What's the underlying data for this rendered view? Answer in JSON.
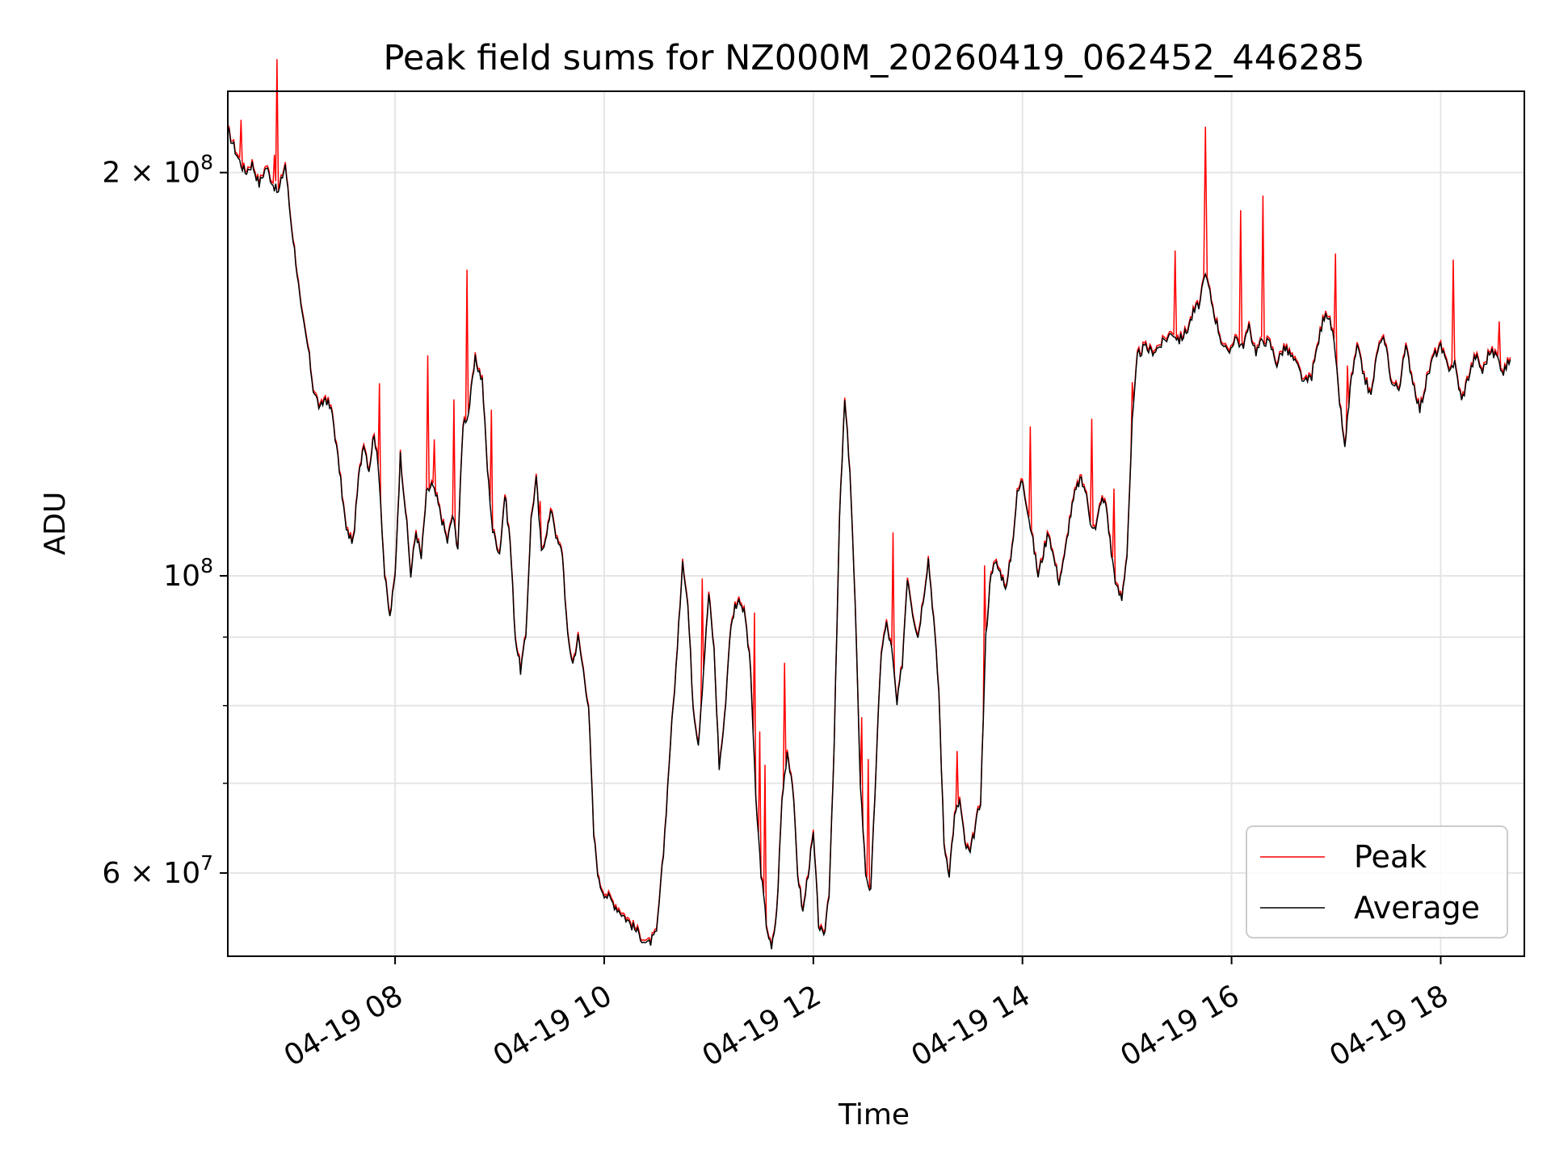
{
  "chart_data": {
    "type": "line",
    "title": "Peak field sums for NZ000M_20260419_062452_446285",
    "xlabel": "Time",
    "ylabel": "ADU",
    "x_axis": "datetime",
    "y_scale": "log",
    "xlim": [
      "04-19 06:24",
      "04-19 18:48"
    ],
    "ylim": [
      52000000,
      230000000
    ],
    "x_ticks": [
      {
        "value": "04-19 08:00",
        "label": "04-19 08"
      },
      {
        "value": "04-19 10:00",
        "label": "04-19 10"
      },
      {
        "value": "04-19 12:00",
        "label": "04-19 12"
      },
      {
        "value": "04-19 14:00",
        "label": "04-19 14"
      },
      {
        "value": "04-19 16:00",
        "label": "04-19 16"
      },
      {
        "value": "04-19 18:00",
        "label": "04-19 18"
      }
    ],
    "y_major_ticks": [
      {
        "value": 60000000,
        "base": "6 × 10",
        "exp": "7"
      },
      {
        "value": 100000000,
        "base": "10",
        "exp": "8"
      },
      {
        "value": 200000000,
        "base": "2 × 10",
        "exp": "8"
      }
    ],
    "y_minor_ticks": [
      70000000,
      80000000,
      90000000
    ],
    "grid": true,
    "legend_position": "lower-right",
    "series": [
      {
        "name": "Peak",
        "color": "#ff0000",
        "role": "peak"
      },
      {
        "name": "Average",
        "color": "#000000",
        "role": "average"
      }
    ],
    "average_points": [
      [
        "04-19 06:24",
        215000000
      ],
      [
        "04-19 06:30",
        205000000
      ],
      [
        "04-19 06:34",
        200000000
      ],
      [
        "04-19 06:38",
        203000000
      ],
      [
        "04-19 06:42",
        196000000
      ],
      [
        "04-19 06:46",
        202000000
      ],
      [
        "04-19 06:50",
        196000000
      ],
      [
        "04-19 06:53",
        193000000
      ],
      [
        "04-19 06:57",
        203000000
      ],
      [
        "04-19 07:00",
        185000000
      ],
      [
        "04-19 07:03",
        172000000
      ],
      [
        "04-19 07:06",
        158000000
      ],
      [
        "04-19 07:10",
        148000000
      ],
      [
        "04-19 07:13",
        138000000
      ],
      [
        "04-19 07:17",
        133000000
      ],
      [
        "04-19 07:20",
        136000000
      ],
      [
        "04-19 07:24",
        132000000
      ],
      [
        "04-19 07:28",
        120000000
      ],
      [
        "04-19 07:32",
        108000000
      ],
      [
        "04-19 07:36",
        106000000
      ],
      [
        "04-19 07:39",
        118000000
      ],
      [
        "04-19 07:42",
        126000000
      ],
      [
        "04-19 07:45",
        120000000
      ],
      [
        "04-19 07:48",
        128000000
      ],
      [
        "04-19 07:51",
        118000000
      ],
      [
        "04-19 07:54",
        100000000
      ],
      [
        "04-19 07:57",
        93000000
      ],
      [
        "04-19 08:00",
        100000000
      ],
      [
        "04-19 08:03",
        123000000
      ],
      [
        "04-19 08:06",
        112000000
      ],
      [
        "04-19 08:09",
        100000000
      ],
      [
        "04-19 08:12",
        108000000
      ],
      [
        "04-19 08:15",
        103000000
      ],
      [
        "04-19 08:18",
        115000000
      ],
      [
        "04-19 08:21",
        117000000
      ],
      [
        "04-19 08:24",
        114000000
      ],
      [
        "04-19 08:27",
        110000000
      ],
      [
        "04-19 08:30",
        106000000
      ],
      [
        "04-19 08:33",
        111000000
      ],
      [
        "04-19 08:36",
        105000000
      ],
      [
        "04-19 08:39",
        130000000
      ],
      [
        "04-19 08:42",
        132000000
      ],
      [
        "04-19 08:46",
        145000000
      ],
      [
        "04-19 08:50",
        140000000
      ],
      [
        "04-19 08:53",
        120000000
      ],
      [
        "04-19 08:56",
        108000000
      ],
      [
        "04-19 09:00",
        104000000
      ],
      [
        "04-19 09:03",
        115000000
      ],
      [
        "04-19 09:06",
        106000000
      ],
      [
        "04-19 09:09",
        90000000
      ],
      [
        "04-19 09:12",
        85000000
      ],
      [
        "04-19 09:15",
        90000000
      ],
      [
        "04-19 09:18",
        110000000
      ],
      [
        "04-19 09:21",
        118000000
      ],
      [
        "04-19 09:24",
        104000000
      ],
      [
        "04-19 09:27",
        108000000
      ],
      [
        "04-19 09:30",
        112000000
      ],
      [
        "04-19 09:33",
        106000000
      ],
      [
        "04-19 09:36",
        104000000
      ],
      [
        "04-19 09:39",
        90000000
      ],
      [
        "04-19 09:42",
        86000000
      ],
      [
        "04-19 09:45",
        90000000
      ],
      [
        "04-19 09:48",
        85000000
      ],
      [
        "04-19 09:51",
        80000000
      ],
      [
        "04-19 09:54",
        64000000
      ],
      [
        "04-19 09:57",
        59000000
      ],
      [
        "04-19 10:00",
        58000000
      ],
      [
        "04-19 10:05",
        57000000
      ],
      [
        "04-19 10:10",
        56000000
      ],
      [
        "04-19 10:15",
        55000000
      ],
      [
        "04-19 10:20",
        54000000
      ],
      [
        "04-19 10:25",
        53000000
      ],
      [
        "04-19 10:30",
        54000000
      ],
      [
        "04-19 10:34",
        62000000
      ],
      [
        "04-19 10:38",
        75000000
      ],
      [
        "04-19 10:42",
        88000000
      ],
      [
        "04-19 10:45",
        103000000
      ],
      [
        "04-19 10:48",
        95000000
      ],
      [
        "04-19 10:51",
        80000000
      ],
      [
        "04-19 10:54",
        75000000
      ],
      [
        "04-19 10:57",
        85000000
      ],
      [
        "04-19 11:00",
        97000000
      ],
      [
        "04-19 11:03",
        88000000
      ],
      [
        "04-19 11:06",
        72000000
      ],
      [
        "04-19 11:09",
        78000000
      ],
      [
        "04-19 11:12",
        90000000
      ],
      [
        "04-19 11:15",
        95000000
      ],
      [
        "04-19 11:18",
        96000000
      ],
      [
        "04-19 11:21",
        93000000
      ],
      [
        "04-19 11:24",
        85000000
      ],
      [
        "04-19 11:27",
        68000000
      ],
      [
        "04-19 11:30",
        60000000
      ],
      [
        "04-19 11:33",
        55000000
      ],
      [
        "04-19 11:36",
        52500000
      ],
      [
        "04-19 11:39",
        56000000
      ],
      [
        "04-19 11:42",
        68000000
      ],
      [
        "04-19 11:45",
        74000000
      ],
      [
        "04-19 11:48",
        70000000
      ],
      [
        "04-19 11:51",
        60000000
      ],
      [
        "04-19 11:54",
        56000000
      ],
      [
        "04-19 11:57",
        60000000
      ],
      [
        "04-19 12:00",
        64000000
      ],
      [
        "04-19 12:03",
        55000000
      ],
      [
        "04-19 12:06",
        53500000
      ],
      [
        "04-19 12:09",
        58000000
      ],
      [
        "04-19 12:12",
        75000000
      ],
      [
        "04-19 12:15",
        110000000
      ],
      [
        "04-19 12:18",
        135000000
      ],
      [
        "04-19 12:21",
        120000000
      ],
      [
        "04-19 12:24",
        95000000
      ],
      [
        "04-19 12:27",
        70000000
      ],
      [
        "04-19 12:30",
        60000000
      ],
      [
        "04-19 12:33",
        58000000
      ],
      [
        "04-19 12:36",
        72000000
      ],
      [
        "04-19 12:39",
        88000000
      ],
      [
        "04-19 12:42",
        92000000
      ],
      [
        "04-19 12:45",
        88000000
      ],
      [
        "04-19 12:48",
        80000000
      ],
      [
        "04-19 12:51",
        86000000
      ],
      [
        "04-19 12:54",
        100000000
      ],
      [
        "04-19 12:57",
        94000000
      ],
      [
        "04-19 13:00",
        90000000
      ],
      [
        "04-19 13:03",
        96000000
      ],
      [
        "04-19 13:06",
        103000000
      ],
      [
        "04-19 13:09",
        93000000
      ],
      [
        "04-19 13:12",
        82000000
      ],
      [
        "04-19 13:15",
        63000000
      ],
      [
        "04-19 13:18",
        60000000
      ],
      [
        "04-19 13:21",
        66000000
      ],
      [
        "04-19 13:24",
        68000000
      ],
      [
        "04-19 13:27",
        63000000
      ],
      [
        "04-19 13:30",
        62000000
      ],
      [
        "04-19 13:33",
        65000000
      ],
      [
        "04-19 13:36",
        68000000
      ],
      [
        "04-19 13:39",
        90000000
      ],
      [
        "04-19 13:42",
        101000000
      ],
      [
        "04-19 13:45",
        102000000
      ],
      [
        "04-19 13:48",
        100000000
      ],
      [
        "04-19 13:51",
        98000000
      ],
      [
        "04-19 13:54",
        105000000
      ],
      [
        "04-19 13:57",
        115000000
      ],
      [
        "04-19 14:00",
        118000000
      ],
      [
        "04-19 14:03",
        112000000
      ],
      [
        "04-19 14:06",
        106000000
      ],
      [
        "04-19 14:09",
        100000000
      ],
      [
        "04-19 14:12",
        104000000
      ],
      [
        "04-19 14:15",
        108000000
      ],
      [
        "04-19 14:18",
        103000000
      ],
      [
        "04-19 14:21",
        99000000
      ],
      [
        "04-19 14:24",
        103000000
      ],
      [
        "04-19 14:27",
        110000000
      ],
      [
        "04-19 14:30",
        115000000
      ],
      [
        "04-19 14:33",
        118000000
      ],
      [
        "04-19 14:36",
        116000000
      ],
      [
        "04-19 14:39",
        110000000
      ],
      [
        "04-19 14:42",
        108000000
      ],
      [
        "04-19 14:45",
        114000000
      ],
      [
        "04-19 14:48",
        113000000
      ],
      [
        "04-19 14:51",
        104000000
      ],
      [
        "04-19 14:54",
        98000000
      ],
      [
        "04-19 14:57",
        96000000
      ],
      [
        "04-19 15:00",
        104000000
      ],
      [
        "04-19 15:03",
        130000000
      ],
      [
        "04-19 15:06",
        146000000
      ],
      [
        "04-19 15:10",
        148000000
      ],
      [
        "04-19 15:14",
        147000000
      ],
      [
        "04-19 15:18",
        148000000
      ],
      [
        "04-19 15:22",
        150000000
      ],
      [
        "04-19 15:26",
        152000000
      ],
      [
        "04-19 15:30",
        150000000
      ],
      [
        "04-19 15:34",
        152000000
      ],
      [
        "04-19 15:38",
        157000000
      ],
      [
        "04-19 15:42",
        160000000
      ],
      [
        "04-19 15:44",
        168000000
      ],
      [
        "04-19 15:46",
        166000000
      ],
      [
        "04-19 15:50",
        157000000
      ],
      [
        "04-19 15:54",
        150000000
      ],
      [
        "04-19 15:58",
        146000000
      ],
      [
        "04-19 16:02",
        151000000
      ],
      [
        "04-19 16:06",
        148000000
      ],
      [
        "04-19 16:10",
        153000000
      ],
      [
        "04-19 16:14",
        147000000
      ],
      [
        "04-19 16:18",
        150000000
      ],
      [
        "04-19 16:22",
        149000000
      ],
      [
        "04-19 16:26",
        144000000
      ],
      [
        "04-19 16:30",
        148000000
      ],
      [
        "04-19 16:34",
        146000000
      ],
      [
        "04-19 16:38",
        143000000
      ],
      [
        "04-19 16:42",
        139000000
      ],
      [
        "04-19 16:46",
        141000000
      ],
      [
        "04-19 16:50",
        150000000
      ],
      [
        "04-19 16:54",
        158000000
      ],
      [
        "04-19 16:58",
        152000000
      ],
      [
        "04-19 17:02",
        135000000
      ],
      [
        "04-19 17:05",
        124000000
      ],
      [
        "04-19 17:08",
        138000000
      ],
      [
        "04-19 17:12",
        148000000
      ],
      [
        "04-19 17:16",
        141000000
      ],
      [
        "04-19 17:20",
        136000000
      ],
      [
        "04-19 17:24",
        148000000
      ],
      [
        "04-19 17:28",
        150000000
      ],
      [
        "04-19 17:32",
        139000000
      ],
      [
        "04-19 17:36",
        138000000
      ],
      [
        "04-19 17:40",
        148000000
      ],
      [
        "04-19 17:44",
        140000000
      ],
      [
        "04-19 17:48",
        133000000
      ],
      [
        "04-19 17:52",
        140000000
      ],
      [
        "04-19 17:56",
        146000000
      ],
      [
        "04-19 18:00",
        148000000
      ],
      [
        "04-19 18:04",
        143000000
      ],
      [
        "04-19 18:08",
        144000000
      ],
      [
        "04-19 18:12",
        135000000
      ],
      [
        "04-19 18:16",
        141000000
      ],
      [
        "04-19 18:20",
        146000000
      ],
      [
        "04-19 18:24",
        142000000
      ],
      [
        "04-19 18:28",
        147000000
      ],
      [
        "04-19 18:32",
        146000000
      ],
      [
        "04-19 18:36",
        142000000
      ],
      [
        "04-19 18:40",
        145000000
      ]
    ]
  }
}
